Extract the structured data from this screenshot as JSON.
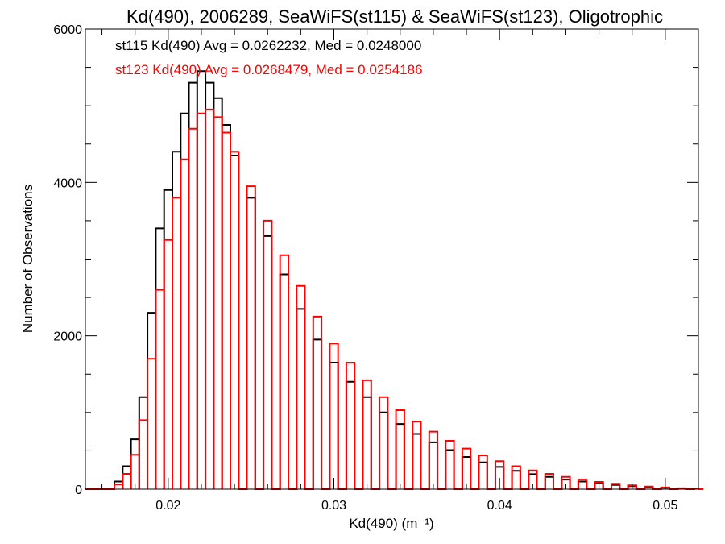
{
  "chart_data": {
    "type": "line",
    "title": "Kd(490), 2006289, SeaWiFS(st115) & SeaWiFS(st123), Oligotrophic",
    "xlabel": "Kd(490) (m⁻¹)",
    "ylabel": "Number of Observations",
    "xlim": [
      0.015,
      0.052
    ],
    "ylim": [
      0,
      6000
    ],
    "x_ticks": [
      {
        "value": 0.02,
        "label": "0.02"
      },
      {
        "value": 0.03,
        "label": "0.03"
      },
      {
        "value": 0.04,
        "label": "0.04"
      },
      {
        "value": 0.05,
        "label": "0.05"
      }
    ],
    "y_ticks": [
      {
        "value": 0,
        "label": "0"
      },
      {
        "value": 2000,
        "label": "2000"
      },
      {
        "value": 4000,
        "label": "4000"
      },
      {
        "value": 6000,
        "label": "6000"
      }
    ],
    "grid": false,
    "legend_position": "top-left",
    "series": [
      {
        "key": "st115",
        "color": "#000000",
        "annotation": "st115 Kd(490) Avg = 0.0262232, Med = 0.0248000",
        "x": [
          0.017,
          0.0175,
          0.018,
          0.0185,
          0.019,
          0.0195,
          0.02,
          0.0205,
          0.021,
          0.0215,
          0.022,
          0.0225,
          0.023,
          0.0235,
          0.024,
          0.025,
          0.026,
          0.027,
          0.028,
          0.029,
          0.03,
          0.031,
          0.032,
          0.033,
          0.034,
          0.035,
          0.036,
          0.037,
          0.038,
          0.039,
          0.04,
          0.041,
          0.042,
          0.043,
          0.044,
          0.045,
          0.046,
          0.047,
          0.048,
          0.049,
          0.05,
          0.051,
          0.052
        ],
        "values": [
          100,
          300,
          650,
          1200,
          2300,
          3400,
          3900,
          4400,
          4900,
          5300,
          5450,
          5300,
          5100,
          4750,
          4350,
          3800,
          3300,
          2800,
          2350,
          1950,
          1650,
          1400,
          1200,
          1000,
          850,
          720,
          610,
          510,
          420,
          350,
          290,
          240,
          195,
          160,
          125,
          100,
          75,
          55,
          40,
          28,
          18,
          10,
          5
        ]
      },
      {
        "key": "st123",
        "color": "#ff0000",
        "annotation": "st123 Kd(490) Avg = 0.0268479, Med = 0.0254186",
        "x": [
          0.017,
          0.0175,
          0.018,
          0.0185,
          0.019,
          0.0195,
          0.02,
          0.0205,
          0.021,
          0.0215,
          0.022,
          0.0225,
          0.023,
          0.0235,
          0.024,
          0.025,
          0.026,
          0.027,
          0.028,
          0.029,
          0.03,
          0.031,
          0.032,
          0.033,
          0.034,
          0.035,
          0.036,
          0.037,
          0.038,
          0.039,
          0.04,
          0.041,
          0.042,
          0.043,
          0.044,
          0.045,
          0.046,
          0.047,
          0.048,
          0.049,
          0.05,
          0.051,
          0.052
        ],
        "values": [
          60,
          200,
          450,
          900,
          1700,
          2600,
          3250,
          3800,
          4300,
          4700,
          4900,
          4950,
          4850,
          4650,
          4400,
          3950,
          3500,
          3050,
          2650,
          2250,
          1900,
          1650,
          1420,
          1200,
          1030,
          880,
          750,
          630,
          530,
          440,
          365,
          300,
          245,
          200,
          160,
          125,
          95,
          70,
          50,
          35,
          22,
          12,
          6
        ]
      }
    ]
  }
}
